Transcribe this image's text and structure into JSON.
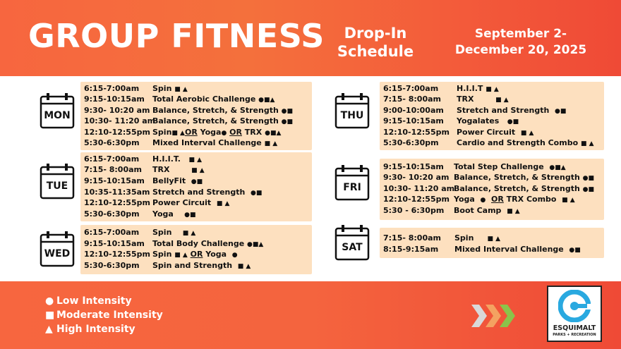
{
  "header": {
    "title": "GROUP FITNESS",
    "dropin_line1": "Drop-In",
    "dropin_line2": "Schedule",
    "dates_line1": "September 2-",
    "dates_line2": "December 20, 2025"
  },
  "days": [
    {
      "id": "mon",
      "label": "MON",
      "rows": [
        {
          "time": "6:15-7:00am",
          "cls": "Spin ■ ▲"
        },
        {
          "time": "9:15-10:15am",
          "cls": "Total Aerobic Challenge ●■▲"
        },
        {
          "time": "9:30- 10:20 am",
          "cls": "Balance, Stretch, & Strength ●■"
        },
        {
          "time": "10:30- 11:20 am",
          "cls": "Balance, Stretch, & Strength ●■"
        },
        {
          "time": "12:10-12:55pm",
          "cls": "Spin ■ ▲ OR Yoga ● OR TRX ●■▲"
        },
        {
          "time": "5:30-6:30pm",
          "cls": "Mixed Interval Challenge ■ ▲"
        }
      ]
    },
    {
      "id": "tue",
      "label": "TUE",
      "rows": [
        {
          "time": "6:15-7:00am",
          "cls": "H.I.I.T.   ■ ▲"
        },
        {
          "time": "7:15- 8:00am",
          "cls": "TRX   ■ ▲"
        },
        {
          "time": "9:15-10:15am",
          "cls": "BellyFit  ●■"
        },
        {
          "time": "10:35-11:35am",
          "cls": "Stretch and Strength  ●■"
        },
        {
          "time": "12:10-12:55pm",
          "cls": "Power Circuit  ■ ▲"
        },
        {
          "time": "5:30-6:30pm",
          "cls": "Yoga   ●■"
        }
      ]
    },
    {
      "id": "wed",
      "label": "WED",
      "rows": [
        {
          "time": "6:15-7:00am",
          "cls": "Spin   ■ ▲"
        },
        {
          "time": "9:15-10:15am",
          "cls": "Total Body Challenge ●■▲"
        },
        {
          "time": "12:10-12:55pm",
          "cls": "Spin ■ ▲ OR Yoga  ●"
        },
        {
          "time": "5:30-6:30pm",
          "cls": "Spin and Strength  ■ ▲"
        }
      ]
    },
    {
      "id": "thu",
      "label": "THU",
      "rows": [
        {
          "time": "6:15-7:00am",
          "cls": "H.I.I.T ■ ▲"
        },
        {
          "time": "7:15- 8:00am",
          "cls": "TRX    ■ ▲"
        },
        {
          "time": "9:00-10:00am",
          "cls": "Stretch and Strength  ●■"
        },
        {
          "time": "9:15-10:15am",
          "cls": "Yogalates   ●■"
        },
        {
          "time": "12:10-12:55pm",
          "cls": "Power Circuit  ■ ▲"
        },
        {
          "time": "5:30-6:30pm",
          "cls": "Cardio and Strength Combo ■ ▲"
        }
      ]
    },
    {
      "id": "fri",
      "label": "FRI",
      "rows": [
        {
          "time": "9:15-10:15am",
          "cls": "Total Step Challenge  ●■▲"
        },
        {
          "time": "9:30- 10:20 am",
          "cls": "Balance, Stretch, & Strength ●■"
        },
        {
          "time": "10:30- 11:20 am",
          "cls": "Balance, Stretch, & Strength ●■"
        },
        {
          "time": "12:10-12:55pm",
          "cls": "Yoga  ●  OR TRX Combo  ■ ▲"
        },
        {
          "time": "5:30 - 6:30pm",
          "cls": "Boot Camp  ■ ▲"
        }
      ]
    },
    {
      "id": "sat",
      "label": "SAT",
      "rows": [
        {
          "time": "7:15- 8:00am",
          "cls": "Spin    ■ ▲"
        },
        {
          "time": "8:15-9:15am",
          "cls": "Mixed Interval Challenge  ●■"
        }
      ]
    }
  ],
  "legend": {
    "low": "Low Intensity",
    "moderate": "Moderate Intensity",
    "high": "High Intensity"
  },
  "logo": {
    "line1": "ESQUIMALT",
    "line2": "PARKS + RECREATION"
  },
  "colors": {
    "header_orange": "#f7663f",
    "header_red": "#ef4a36",
    "schedule_bg": "#fde0bf",
    "chevron_grey": "#d9d9d9",
    "chevron_orange": "#f4a261",
    "chevron_green": "#8bc34a",
    "logo_blue": "#29a9e0"
  }
}
